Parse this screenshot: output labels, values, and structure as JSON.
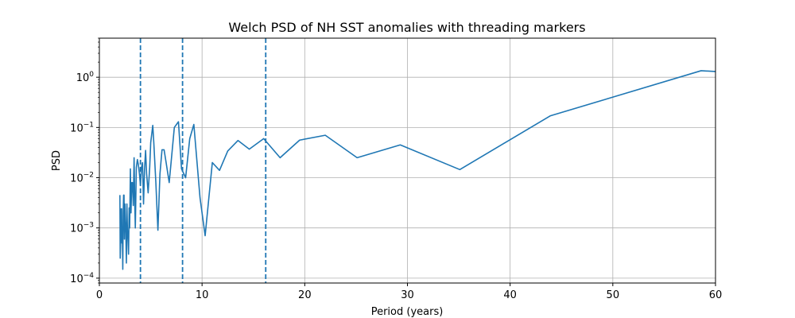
{
  "chart_data": {
    "type": "line",
    "title": "Welch PSD of NH SST anomalies with threading markers",
    "xlabel": "Period (years)",
    "ylabel": "PSD",
    "xlim": [
      0,
      60
    ],
    "ylim": [
      8e-05,
      6
    ],
    "yscale": "log",
    "grid": true,
    "x_ticks": [
      0,
      10,
      20,
      30,
      40,
      50,
      60
    ],
    "x_tick_labels": [
      "0",
      "10",
      "20",
      "30",
      "40",
      "50",
      "60"
    ],
    "y_ticks": [
      0.0001,
      0.001,
      0.01,
      0.1,
      1
    ],
    "y_tick_exponents": [
      "−4",
      "−3",
      "−2",
      "−1",
      "0"
    ],
    "y_tick_base": "10",
    "vlines": [
      4,
      8.1,
      16.2
    ],
    "colors": {
      "line": "#1f77b4",
      "vline": "#1f77b4",
      "grid": "#b0b0b0"
    },
    "series": [
      {
        "x": [
          60,
          58.6,
          43.9,
          35.1,
          29.3,
          25.1,
          22.0,
          19.5,
          17.6,
          16.0,
          14.6,
          13.5,
          12.5,
          11.7,
          11.0,
          10.3,
          9.8,
          9.2,
          8.8,
          8.4,
          8.0,
          7.7,
          7.3,
          7.0,
          6.8,
          6.5,
          6.3,
          6.1,
          5.9,
          5.7,
          5.5,
          5.3,
          5.2,
          5.0,
          4.9,
          4.75,
          4.6,
          4.5,
          4.4,
          4.3,
          4.2,
          4.1,
          4.0,
          3.9,
          3.8,
          3.7,
          3.6,
          3.5,
          3.45,
          3.38,
          3.3,
          3.22,
          3.15,
          3.08,
          3.02,
          2.95,
          2.9,
          2.84,
          2.78,
          2.73,
          2.68,
          2.63,
          2.58,
          2.53,
          2.49,
          2.44,
          2.4,
          2.36,
          2.32,
          2.28,
          2.24,
          2.2,
          2.17,
          2.13,
          2.1,
          2.07,
          2.03,
          2.0
        ],
        "y": [
          1.3,
          1.35,
          0.17,
          0.0145,
          0.045,
          0.025,
          0.07,
          0.056,
          0.025,
          0.06,
          0.037,
          0.055,
          0.034,
          0.014,
          0.02,
          0.0007,
          0.004,
          0.115,
          0.06,
          0.01,
          0.015,
          0.13,
          0.1,
          0.022,
          0.008,
          0.02,
          0.036,
          0.036,
          0.012,
          0.0009,
          0.008,
          0.05,
          0.11,
          0.05,
          0.016,
          0.005,
          0.012,
          0.035,
          0.015,
          0.003,
          0.02,
          0.016,
          0.007,
          0.012,
          0.018,
          0.023,
          0.016,
          0.001,
          0.003,
          0.025,
          0.0028,
          0.008,
          0.008,
          0.002,
          0.015,
          0.001,
          0.0025,
          0.0003,
          0.0006,
          0.001,
          0.003,
          0.0002,
          0.0008,
          0.0014,
          0.003,
          0.0006,
          0.0045,
          0.0045,
          0.002,
          0.00015,
          0.0007,
          0.0005,
          0.0024,
          0.0024,
          0.0012,
          0.0005,
          0.00025,
          0.0045
        ]
      }
    ]
  }
}
